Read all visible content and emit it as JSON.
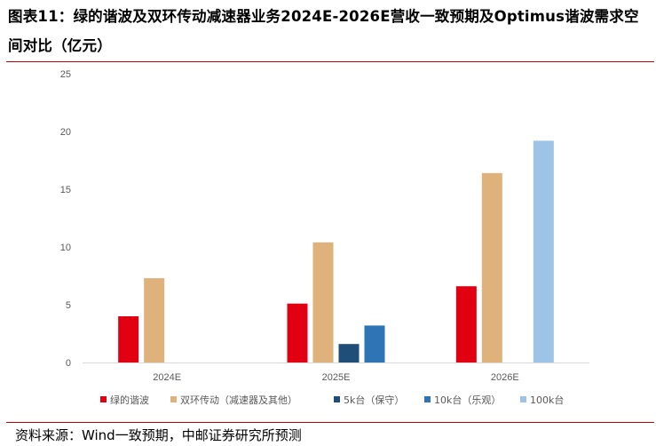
{
  "title": "图表11：绿的谐波及双环传动减速器业务2024E-2026E营收一致预期及Optimus谐波需求空间对比（亿元）",
  "source": "资料来源：Wind一致预期，中邮证券研究所预测",
  "colors": {
    "accent_rule": "#c00000",
    "axis": "#d9d9d9",
    "text": "#595959"
  },
  "chart_data": {
    "type": "bar",
    "title": "图表11：绿的谐波及双环传动减速器业务2024E-2026E营收一致预期及Optimus谐波需求空间对比（亿元）",
    "categories": [
      "2024E",
      "2025E",
      "2026E"
    ],
    "ylim": [
      0,
      25
    ],
    "yticks": [
      0,
      5,
      10,
      15,
      20,
      25
    ],
    "grid": false,
    "legend_position": "bottom",
    "series": [
      {
        "name": "绿的谐波",
        "color": "#e00012",
        "values": [
          4.0,
          5.1,
          6.6
        ]
      },
      {
        "name": "双环传动（减速器及其他）",
        "color": "#deb27a",
        "values": [
          7.3,
          10.4,
          16.4
        ]
      },
      {
        "name": "5k台（保守）",
        "color": "#1f4e79",
        "values": [
          null,
          1.6,
          null
        ]
      },
      {
        "name": "10k台（乐观）",
        "color": "#2e75b6",
        "values": [
          null,
          3.2,
          null
        ]
      },
      {
        "name": "100k台",
        "color": "#9dc3e6",
        "values": [
          null,
          null,
          19.2
        ]
      }
    ]
  }
}
